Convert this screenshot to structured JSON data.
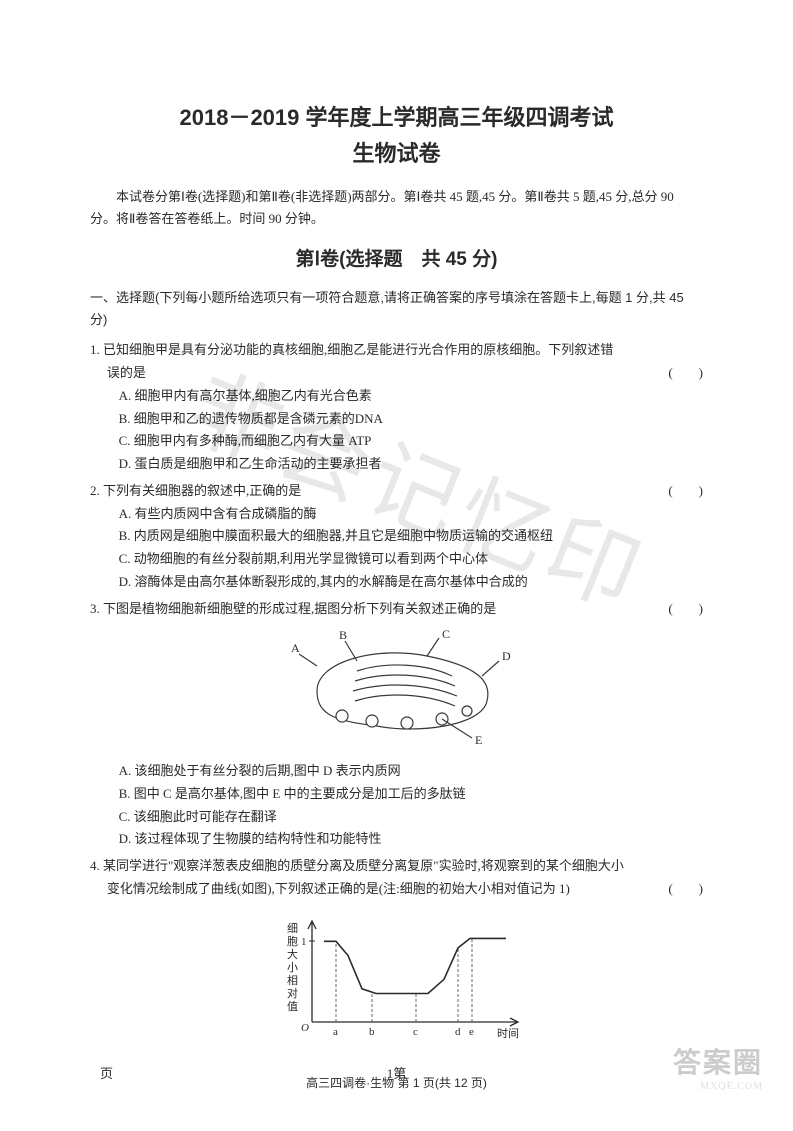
{
  "title_main": "2018－2019 学年度上学期高三年级四调考试",
  "title_sub": "生物试卷",
  "intro": "本试卷分第Ⅰ卷(选择题)和第Ⅱ卷(非选择题)两部分。第Ⅰ卷共 45 题,45 分。第Ⅱ卷共 5 题,45 分,总分 90 分。将Ⅱ卷答在答卷纸上。时间 90 分钟。",
  "section1_header": "第Ⅰ卷(选择题　共 45 分)",
  "instructions_label": "一、选择题",
  "instructions_text": "(下列每小题所给选项只有一项符合题意,请将正确答案的序号填涂在答题卡上,每题 1 分,共 45 分)",
  "q1": {
    "stem1": "1. 已知细胞甲是具有分泌功能的真核细胞,细胞乙是能进行光合作用的原核细胞。下列叙述错",
    "stem2": "误的是",
    "bracket": "(　　)",
    "A": "A. 细胞甲内有高尔基体,细胞乙内有光合色素",
    "B": "B. 细胞甲和乙的遗传物质都是含磷元素的DNA",
    "C": "C. 细胞甲内有多种酶,而细胞乙内有大量 ATP",
    "D": "D. 蛋白质是细胞甲和乙生命活动的主要承担者"
  },
  "q2": {
    "stem": "2. 下列有关细胞器的叙述中,正确的是",
    "bracket": "(　　)",
    "A": "A. 有些内质网中含有合成磷脂的酶",
    "B": "B. 内质网是细胞中膜面积最大的细胞器,并且它是细胞中物质运输的交通枢纽",
    "C": "C. 动物细胞的有丝分裂前期,利用光学显微镜可以看到两个中心体",
    "D": "D. 溶酶体是由高尔基体断裂形成的,其内的水解酶是在高尔基体中合成的"
  },
  "q3": {
    "stem": "3. 下图是植物细胞新细胞壁的形成过程,据图分析下列有关叙述正确的是",
    "bracket": "(　　)",
    "A": "A. 该细胞处于有丝分裂的后期,图中 D 表示内质网",
    "B": "B. 图中 C 是高尔基体,图中 E 中的主要成分是加工后的多肽链",
    "C": "C. 该细胞此时可能存在翻译",
    "D": "D. 该过程体现了生物膜的结构特性和功能特性"
  },
  "q4": {
    "stem1": "4. 某同学进行\"观察洋葱表皮细胞的质壁分离及质壁分离复原\"实验时,将观察到的某个细胞大小",
    "stem2": "变化情况绘制成了曲线(如图),下列叙述正确的是(注:细胞的初始大小相对值记为 1)",
    "bracket": "(　　)"
  },
  "watermark_text": "非会记忆印",
  "page_footer": "高三四调卷·生物 第 1 页(共 12 页)",
  "bottom_left": "页",
  "bottom_center": "1第",
  "logo_big": "答案圈",
  "logo_small": "MXQE.COM",
  "fig3": {
    "labels": [
      "A",
      "B",
      "C",
      "D",
      "E"
    ],
    "stroke": "#3a3a3a",
    "fill": "#f8f8f8"
  },
  "fig4": {
    "ylabel": "细胞大小相对值",
    "xlabel": "时间",
    "xticks": [
      "a",
      "b",
      "c",
      "d",
      "e"
    ],
    "ymark": "1",
    "curve": [
      [
        0.08,
        0.22
      ],
      [
        0.15,
        0.22
      ],
      [
        0.22,
        0.4
      ],
      [
        0.3,
        0.7
      ],
      [
        0.38,
        0.72
      ],
      [
        0.5,
        0.72
      ],
      [
        0.6,
        0.72
      ],
      [
        0.68,
        0.5
      ],
      [
        0.75,
        0.25
      ],
      [
        0.82,
        0.18
      ],
      [
        0.9,
        0.18
      ],
      [
        0.98,
        0.18
      ]
    ],
    "stroke": "#2a2a2a",
    "dash_color": "#555"
  }
}
